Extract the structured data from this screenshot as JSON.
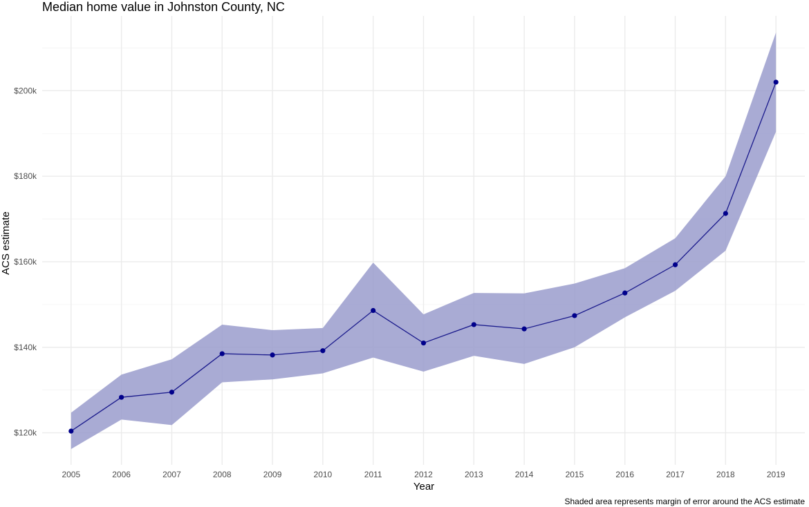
{
  "chart_data": {
    "type": "line",
    "title": "Median home value in Johnston County, NC",
    "xlabel": "Year",
    "ylabel": "ACS estimate",
    "caption": "Shaded area represents margin of error around the ACS estimate",
    "x": [
      2005,
      2006,
      2007,
      2008,
      2009,
      2010,
      2011,
      2012,
      2013,
      2014,
      2015,
      2016,
      2017,
      2018,
      2019
    ],
    "series": [
      {
        "values": [
          120400,
          128300,
          129500,
          138500,
          138200,
          139200,
          148600,
          141000,
          145300,
          144300,
          147400,
          152700,
          159300,
          171300,
          202000
        ],
        "lower": [
          116200,
          123100,
          121800,
          131800,
          132500,
          133900,
          137600,
          134300,
          138000,
          136100,
          140000,
          147000,
          153200,
          162600,
          190400
        ],
        "upper": [
          124700,
          133600,
          137200,
          145300,
          144000,
          144500,
          159800,
          147700,
          152700,
          152600,
          154900,
          158500,
          165500,
          180000,
          213600
        ]
      }
    ],
    "yticks": [
      120000,
      140000,
      160000,
      180000,
      200000
    ],
    "ytick_labels": [
      "$120k",
      "$140k",
      "$160k",
      "$180k",
      "$200k"
    ],
    "ylim": [
      112500,
      217500
    ],
    "grid": true,
    "colors": {
      "line": "#1a1a8c",
      "point": "#00008b",
      "band": "#9a9ccc",
      "grid": "#ebebeb"
    }
  }
}
